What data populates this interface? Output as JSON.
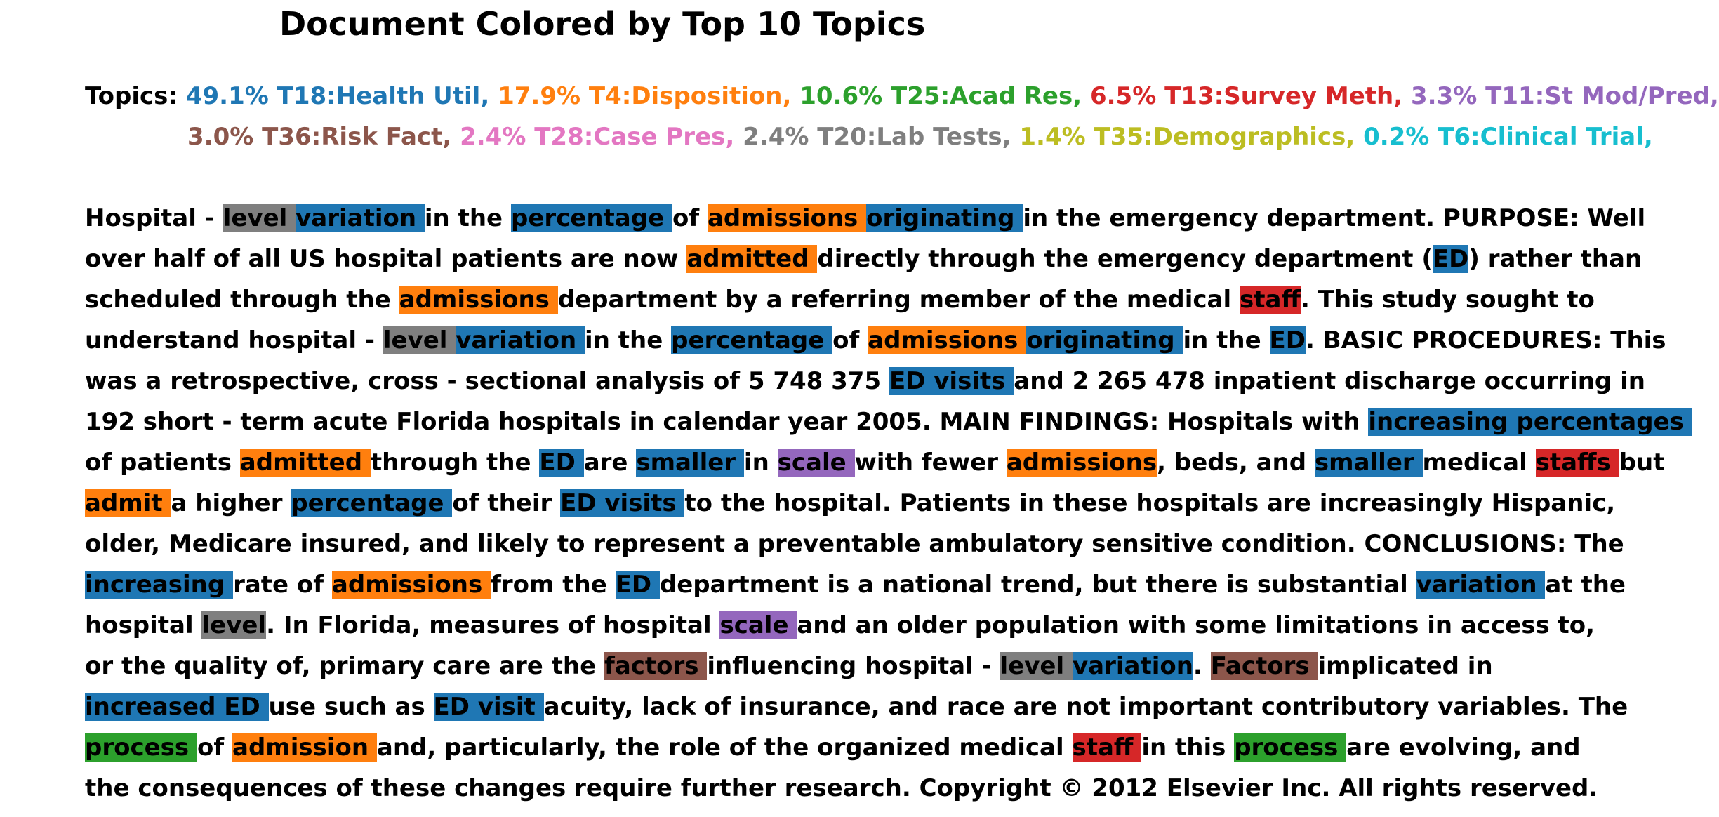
{
  "title": "Document Colored by Top 10 Topics",
  "topics_label": "Topics:",
  "topic_colors": {
    "blue": "#1f77b4",
    "orange": "#ff7f0e",
    "green": "#2ca02c",
    "red": "#d62728",
    "purple": "#9467bd",
    "brown": "#8c564b",
    "pink": "#e377c2",
    "gray": "#7f7f7f",
    "olive": "#bcbd22",
    "cyan": "#17becf"
  },
  "topics_line1": [
    {
      "text": "49.1% T18:Health Util,",
      "color": "#1f77b4"
    },
    {
      "text": "17.9% T4:Disposition,",
      "color": "#ff7f0e"
    },
    {
      "text": "10.6% T25:Acad Res,",
      "color": "#2ca02c"
    },
    {
      "text": "6.5% T13:Survey Meth,",
      "color": "#d62728"
    },
    {
      "text": "3.3% T11:St Mod/Pred,",
      "color": "#9467bd"
    }
  ],
  "topics_line2": [
    {
      "text": "3.0% T36:Risk Fact,",
      "color": "#8c564b"
    },
    {
      "text": "2.4% T28:Case Pres,",
      "color": "#e377c2"
    },
    {
      "text": "2.4% T20:Lab Tests,",
      "color": "#7f7f7f"
    },
    {
      "text": "1.4% T35:Demographics,",
      "color": "#bcbd22"
    },
    {
      "text": "0.2% T6:Clinical Trial,",
      "color": "#17becf"
    }
  ],
  "document_lines": [
    [
      {
        "text": "Hospital - "
      },
      {
        "text": "level ",
        "color": "#7f7f7f"
      },
      {
        "text": "variation ",
        "color": "#1f77b4"
      },
      {
        "text": "in the "
      },
      {
        "text": "percentage ",
        "color": "#1f77b4"
      },
      {
        "text": "of "
      },
      {
        "text": "admissions ",
        "color": "#ff7f0e"
      },
      {
        "text": "originating ",
        "color": "#1f77b4"
      },
      {
        "text": "in the emergency department. PURPOSE: Well"
      }
    ],
    [
      {
        "text": "over half of all US hospital patients are now "
      },
      {
        "text": "admitted ",
        "color": "#ff7f0e"
      },
      {
        "text": "directly through the emergency department ("
      },
      {
        "text": "ED",
        "color": "#1f77b4"
      },
      {
        "text": ") rather than"
      }
    ],
    [
      {
        "text": "scheduled through the "
      },
      {
        "text": "admissions ",
        "color": "#ff7f0e"
      },
      {
        "text": "department by a referring member of the medical "
      },
      {
        "text": "staff",
        "color": "#d62728"
      },
      {
        "text": ". This study sought to"
      }
    ],
    [
      {
        "text": "understand hospital - "
      },
      {
        "text": "level ",
        "color": "#7f7f7f"
      },
      {
        "text": "variation ",
        "color": "#1f77b4"
      },
      {
        "text": "in the "
      },
      {
        "text": "percentage ",
        "color": "#1f77b4"
      },
      {
        "text": "of "
      },
      {
        "text": "admissions ",
        "color": "#ff7f0e"
      },
      {
        "text": "originating ",
        "color": "#1f77b4"
      },
      {
        "text": "in the "
      },
      {
        "text": "ED",
        "color": "#1f77b4"
      },
      {
        "text": ". BASIC PROCEDURES: This"
      }
    ],
    [
      {
        "text": "was a retrospective, cross - sectional analysis of 5 748 375 "
      },
      {
        "text": "ED visits ",
        "color": "#1f77b4"
      },
      {
        "text": "and 2 265 478 inpatient discharge occurring in"
      }
    ],
    [
      {
        "text": "192 short - term acute Florida hospitals in calendar year 2005. MAIN FINDINGS: Hospitals with "
      },
      {
        "text": "increasing percentages ",
        "color": "#1f77b4"
      }
    ],
    [
      {
        "text": "of patients "
      },
      {
        "text": "admitted ",
        "color": "#ff7f0e"
      },
      {
        "text": "through the "
      },
      {
        "text": "ED ",
        "color": "#1f77b4"
      },
      {
        "text": "are "
      },
      {
        "text": "smaller ",
        "color": "#1f77b4"
      },
      {
        "text": "in "
      },
      {
        "text": "scale ",
        "color": "#9467bd"
      },
      {
        "text": "with fewer "
      },
      {
        "text": "admissions",
        "color": "#ff7f0e"
      },
      {
        "text": ", beds, and "
      },
      {
        "text": "smaller ",
        "color": "#1f77b4"
      },
      {
        "text": "medical "
      },
      {
        "text": "staffs ",
        "color": "#d62728"
      },
      {
        "text": "but"
      }
    ],
    [
      {
        "text": "admit ",
        "color": "#ff7f0e"
      },
      {
        "text": "a higher "
      },
      {
        "text": "percentage ",
        "color": "#1f77b4"
      },
      {
        "text": "of their "
      },
      {
        "text": "ED visits ",
        "color": "#1f77b4"
      },
      {
        "text": "to the hospital. Patients in these hospitals are increasingly Hispanic,"
      }
    ],
    [
      {
        "text": "older, Medicare insured, and likely to represent a preventable ambulatory sensitive condition. CONCLUSIONS: The"
      }
    ],
    [
      {
        "text": "increasing ",
        "color": "#1f77b4"
      },
      {
        "text": "rate of "
      },
      {
        "text": "admissions ",
        "color": "#ff7f0e"
      },
      {
        "text": "from the "
      },
      {
        "text": "ED ",
        "color": "#1f77b4"
      },
      {
        "text": "department is a national trend, but there is substantial "
      },
      {
        "text": "variation ",
        "color": "#1f77b4"
      },
      {
        "text": "at the"
      }
    ],
    [
      {
        "text": "hospital "
      },
      {
        "text": "level",
        "color": "#7f7f7f"
      },
      {
        "text": ". In Florida, measures of hospital "
      },
      {
        "text": "scale ",
        "color": "#9467bd"
      },
      {
        "text": "and an older population with some limitations in access to,"
      }
    ],
    [
      {
        "text": "or the quality of, primary care are the "
      },
      {
        "text": "factors ",
        "color": "#8c564b"
      },
      {
        "text": "influencing hospital - "
      },
      {
        "text": "level ",
        "color": "#7f7f7f"
      },
      {
        "text": "variation",
        "color": "#1f77b4"
      },
      {
        "text": ". "
      },
      {
        "text": "Factors ",
        "color": "#8c564b"
      },
      {
        "text": "implicated in"
      }
    ],
    [
      {
        "text": "increased ED ",
        "color": "#1f77b4"
      },
      {
        "text": "use such as "
      },
      {
        "text": "ED visit ",
        "color": "#1f77b4"
      },
      {
        "text": "acuity, lack of insurance, and race are not important contributory variables. The"
      }
    ],
    [
      {
        "text": "process ",
        "color": "#2ca02c"
      },
      {
        "text": "of "
      },
      {
        "text": "admission ",
        "color": "#ff7f0e"
      },
      {
        "text": "and, particularly, the role of the organized medical "
      },
      {
        "text": "staff ",
        "color": "#d62728"
      },
      {
        "text": "in this "
      },
      {
        "text": "process ",
        "color": "#2ca02c"
      },
      {
        "text": "are evolving, and"
      }
    ],
    [
      {
        "text": "the consequences of these changes require further research. Copyright © 2012 Elsevier Inc. All rights reserved."
      }
    ]
  ]
}
